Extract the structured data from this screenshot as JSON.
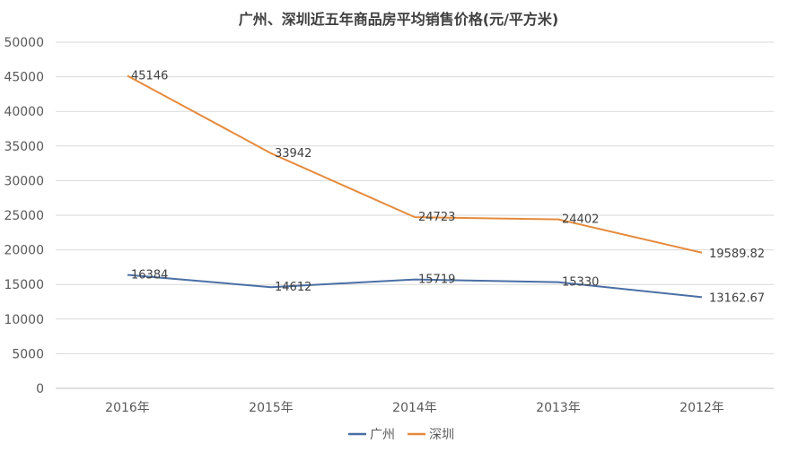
{
  "chart_data": {
    "type": "line",
    "title": "广州、深圳近五年商品房平均销售价格(元/平方米)",
    "xlabel": "",
    "ylabel": "",
    "categories": [
      "2016年",
      "2015年",
      "2014年",
      "2013年",
      "2012年"
    ],
    "ylim": [
      0,
      50000
    ],
    "yticks": [
      0,
      5000,
      10000,
      15000,
      20000,
      25000,
      30000,
      35000,
      40000,
      45000,
      50000
    ],
    "grid": true,
    "legend_position": "bottom-center",
    "series": [
      {
        "name": "广州",
        "color": "#4a6fa5",
        "values": [
          16384,
          14612,
          15719,
          15330,
          13162.67
        ],
        "labels": [
          "16384",
          "14612",
          "15719",
          "15330",
          "13162.67"
        ]
      },
      {
        "name": "深圳",
        "color": "#e58a3c",
        "values": [
          45146,
          33942,
          24723,
          24402,
          19589.82
        ],
        "labels": [
          "45146",
          "33942",
          "24723",
          "24402",
          "19589.82"
        ]
      }
    ]
  }
}
